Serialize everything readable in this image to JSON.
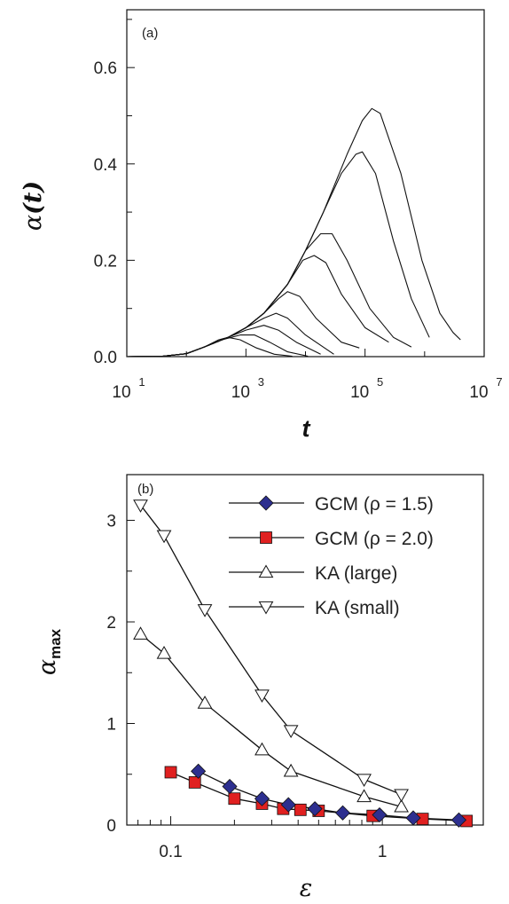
{
  "chart_data": [
    {
      "type": "line",
      "panel_label": "(a)",
      "xlabel": "t",
      "ylabel_symbol": "α",
      "ylabel_arg": "(t)",
      "xscale": "log",
      "xlim": [
        10,
        10000000
      ],
      "ylim": [
        0,
        0.72
      ],
      "xticks": [
        {
          "base": "10",
          "exp": "1"
        },
        {
          "base": "10",
          "exp": "3"
        },
        {
          "base": "10",
          "exp": "5"
        },
        {
          "base": "10",
          "exp": "7"
        }
      ],
      "xtick_values": [
        10,
        1000,
        100000,
        10000000
      ],
      "yticks": [
        "0.0",
        "0.2",
        "0.4",
        "0.6"
      ],
      "ytick_values": [
        0,
        0.2,
        0.4,
        0.6
      ],
      "series": [
        {
          "values": [
            [
              10,
              0
            ],
            [
              40,
              0.001
            ],
            [
              100,
              0.006
            ],
            [
              200,
              0.02
            ],
            [
              350,
              0.035
            ],
            [
              500,
              0.04
            ],
            [
              800,
              0.035
            ],
            [
              1500,
              0.018
            ],
            [
              3000,
              0.005
            ],
            [
              6000,
              0.001
            ]
          ]
        },
        {
          "values": [
            [
              10,
              0
            ],
            [
              40,
              0.001
            ],
            [
              100,
              0.006
            ],
            [
              200,
              0.02
            ],
            [
              400,
              0.035
            ],
            [
              800,
              0.045
            ],
            [
              1400,
              0.045
            ],
            [
              2500,
              0.03
            ],
            [
              5000,
              0.01
            ],
            [
              11000,
              0.001
            ]
          ]
        },
        {
          "values": [
            [
              10,
              0
            ],
            [
              40,
              0.001
            ],
            [
              100,
              0.006
            ],
            [
              200,
              0.02
            ],
            [
              500,
              0.04
            ],
            [
              1000,
              0.055
            ],
            [
              2000,
              0.065
            ],
            [
              3500,
              0.055
            ],
            [
              7000,
              0.03
            ],
            [
              18000,
              0.005
            ]
          ]
        },
        {
          "values": [
            [
              10,
              0
            ],
            [
              40,
              0.001
            ],
            [
              100,
              0.006
            ],
            [
              200,
              0.02
            ],
            [
              500,
              0.04
            ],
            [
              1000,
              0.06
            ],
            [
              2000,
              0.08
            ],
            [
              3200,
              0.09
            ],
            [
              5000,
              0.08
            ],
            [
              10000,
              0.045
            ],
            [
              30000,
              0.005
            ]
          ]
        },
        {
          "values": [
            [
              10,
              0
            ],
            [
              40,
              0.001
            ],
            [
              100,
              0.006
            ],
            [
              200,
              0.02
            ],
            [
              500,
              0.04
            ],
            [
              1000,
              0.06
            ],
            [
              2000,
              0.09
            ],
            [
              3500,
              0.12
            ],
            [
              5000,
              0.135
            ],
            [
              8000,
              0.125
            ],
            [
              15000,
              0.08
            ],
            [
              40000,
              0.03
            ],
            [
              80000,
              0.018
            ]
          ]
        },
        {
          "values": [
            [
              10,
              0
            ],
            [
              40,
              0.001
            ],
            [
              100,
              0.006
            ],
            [
              200,
              0.02
            ],
            [
              500,
              0.04
            ],
            [
              1000,
              0.06
            ],
            [
              2000,
              0.09
            ],
            [
              5000,
              0.15
            ],
            [
              9000,
              0.2
            ],
            [
              14000,
              0.21
            ],
            [
              22000,
              0.195
            ],
            [
              40000,
              0.13
            ],
            [
              100000,
              0.06
            ],
            [
              250000,
              0.03
            ]
          ]
        },
        {
          "values": [
            [
              10,
              0
            ],
            [
              40,
              0.001
            ],
            [
              100,
              0.006
            ],
            [
              200,
              0.02
            ],
            [
              500,
              0.04
            ],
            [
              1000,
              0.06
            ],
            [
              2000,
              0.09
            ],
            [
              5000,
              0.15
            ],
            [
              10000,
              0.22
            ],
            [
              18000,
              0.255
            ],
            [
              28000,
              0.255
            ],
            [
              50000,
              0.2
            ],
            [
              120000,
              0.1
            ],
            [
              300000,
              0.04
            ],
            [
              600000,
              0.02
            ]
          ]
        },
        {
          "values": [
            [
              10,
              0
            ],
            [
              40,
              0.001
            ],
            [
              100,
              0.006
            ],
            [
              200,
              0.02
            ],
            [
              500,
              0.04
            ],
            [
              1000,
              0.06
            ],
            [
              2000,
              0.09
            ],
            [
              5000,
              0.15
            ],
            [
              10000,
              0.22
            ],
            [
              20000,
              0.3
            ],
            [
              40000,
              0.38
            ],
            [
              70000,
              0.42
            ],
            [
              90000,
              0.425
            ],
            [
              150000,
              0.38
            ],
            [
              300000,
              0.24
            ],
            [
              600000,
              0.12
            ],
            [
              1200000,
              0.04
            ]
          ]
        },
        {
          "values": [
            [
              10,
              0
            ],
            [
              40,
              0.001
            ],
            [
              100,
              0.006
            ],
            [
              200,
              0.02
            ],
            [
              500,
              0.04
            ],
            [
              1000,
              0.06
            ],
            [
              2000,
              0.09
            ],
            [
              5000,
              0.15
            ],
            [
              10000,
              0.22
            ],
            [
              20000,
              0.3
            ],
            [
              50000,
              0.42
            ],
            [
              90000,
              0.49
            ],
            [
              130000,
              0.515
            ],
            [
              180000,
              0.505
            ],
            [
              400000,
              0.38
            ],
            [
              900000,
              0.2
            ],
            [
              1800000,
              0.09
            ],
            [
              3000000,
              0.05
            ],
            [
              4000000,
              0.035
            ]
          ]
        }
      ]
    },
    {
      "type": "line",
      "panel_label": "(b)",
      "xlabel": "ε",
      "ylabel_symbol": "α",
      "ylabel_sub": "max",
      "xscale": "log",
      "xlim": [
        0.062,
        3.0
      ],
      "ylim": [
        0,
        3.45
      ],
      "xticks": [
        "0.1",
        "1"
      ],
      "xtick_values": [
        0.1,
        1
      ],
      "yticks": [
        "0",
        "1",
        "2",
        "3"
      ],
      "ytick_values": [
        0,
        1,
        2,
        3
      ],
      "legend_position": "top-right",
      "series": [
        {
          "name": "GCM (ρ = 1.5)",
          "marker": "diamond",
          "color": "#2d2f8f",
          "x": [
            0.135,
            0.19,
            0.27,
            0.36,
            0.48,
            0.65,
            0.97,
            1.4,
            2.3
          ],
          "y": [
            0.53,
            0.38,
            0.26,
            0.2,
            0.16,
            0.12,
            0.1,
            0.07,
            0.05
          ]
        },
        {
          "name": "GCM (ρ = 2.0)",
          "marker": "square",
          "color": "#e02020",
          "x": [
            0.1,
            0.13,
            0.2,
            0.27,
            0.34,
            0.41,
            0.5,
            0.9,
            1.55,
            2.5
          ],
          "y": [
            0.52,
            0.42,
            0.26,
            0.21,
            0.16,
            0.15,
            0.14,
            0.09,
            0.06,
            0.04
          ]
        },
        {
          "name": "KA (large)",
          "marker": "triangle-up",
          "color": "#ffffff",
          "x": [
            0.072,
            0.093,
            0.145,
            0.27,
            0.37,
            0.82,
            1.23
          ],
          "y": [
            1.88,
            1.69,
            1.2,
            0.74,
            0.53,
            0.28,
            0.18
          ]
        },
        {
          "name": "KA (small)",
          "marker": "triangle-down",
          "color": "#ffffff",
          "x": [
            0.072,
            0.093,
            0.145,
            0.27,
            0.37,
            0.82,
            1.23
          ],
          "y": [
            3.15,
            2.85,
            2.12,
            1.28,
            0.93,
            0.45,
            0.3
          ]
        }
      ]
    }
  ]
}
